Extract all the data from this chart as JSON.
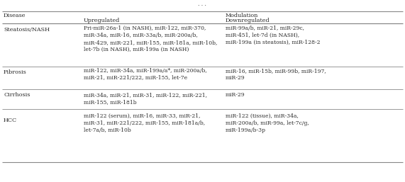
{
  "title_dots": ". . .",
  "col_header_disease": "Disease",
  "col_header_modulation": "Modulation",
  "col_header_upregulated": "Upregulated",
  "col_header_downregulated": "Downregulated",
  "rows": [
    {
      "disease": "Steatosis/NASH",
      "upregulated": "Pri-miR-26a-1 (in NASH), miR-122, miR-370,\nmiR-34a, miR-16, miR-33a/b, miR-200a/b,\nmiR-429, miR-221, miR-155, miR-181a, miR-10b,\nlet-7b (in NASH), miR-199a (in NASH)",
      "downregulated": "miR-99a/b, miR-21, miR-29c,\nmiR-451, let-7d (in NASH),\nmiR-199a (in steatosis), miR-128-2"
    },
    {
      "disease": "Fibrosis",
      "upregulated": "miR-122, miR-34a, miR-199a/a*, miR-200a/b,\nmiR-21, miR-221/222, miR-155, let-7e",
      "downregulated": "miR-16, miR-15b, miR-99b, miR-197,\nmiR-29"
    },
    {
      "disease": "Cirrhosis",
      "upregulated": "miR-34a, miR-21, miR-31, miR-122, miR-221,\nmiR-155, miR-181b",
      "downregulated": "miR-29"
    },
    {
      "disease": "HCC",
      "upregulated": "miR-122 (serum), miR-16, miR-33, miR-21,\nmiR-31, miR-221/222, miR-155, miR-181a/b,\nlet-7a/b, miR-10b",
      "downregulated": "miR-122 (tissue), miR-34a,\nmiR-200a/b, miR-99a, let-7c/g,\nmiR-199a/b-3p"
    }
  ],
  "bg_color": "#ffffff",
  "text_color": "#2a2a2a",
  "line_color": "#888888",
  "font_size": 5.8,
  "font_family": "serif"
}
